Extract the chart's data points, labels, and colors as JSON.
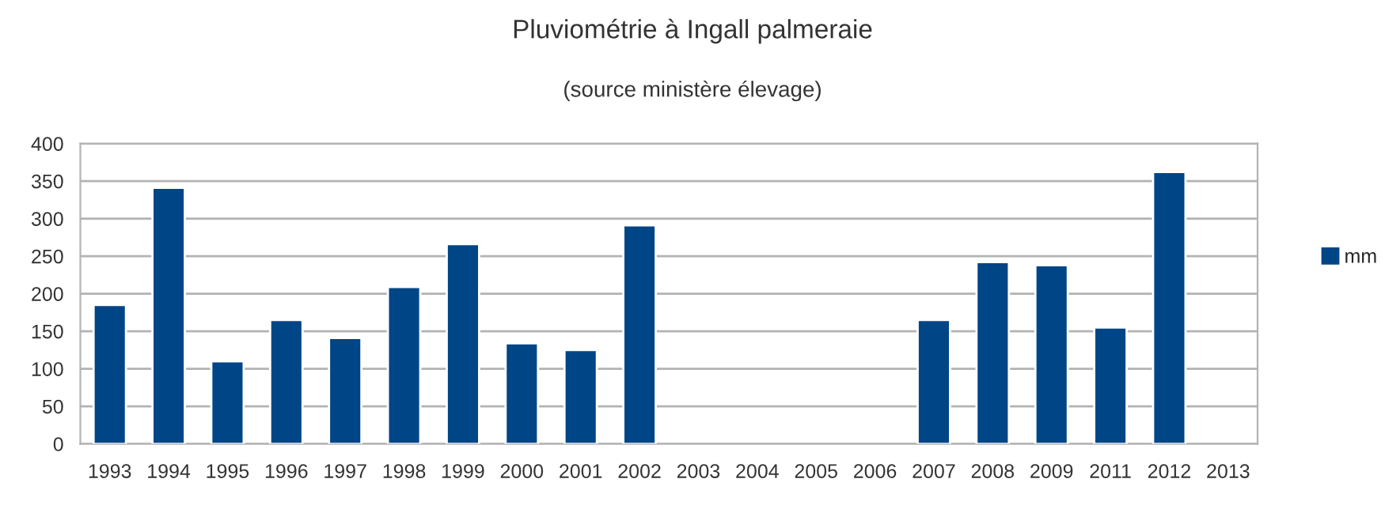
{
  "chart_data": {
    "type": "bar",
    "title": "Pluviométrie à Ingall palmeraie",
    "subtitle": "(source ministère élevage)",
    "categories": [
      "1993",
      "1994",
      "1995",
      "1996",
      "1997",
      "1998",
      "1999",
      "2000",
      "2001",
      "2002",
      "2003",
      "2004",
      "2005",
      "2006",
      "2007",
      "2008",
      "2009",
      "2011",
      "2012",
      "2013"
    ],
    "series": [
      {
        "name": "mm",
        "color": "#004586",
        "values": [
          185,
          341,
          110,
          165,
          141,
          209,
          266,
          134,
          125,
          291,
          null,
          null,
          null,
          null,
          165,
          242,
          238,
          155,
          362,
          null
        ]
      }
    ],
    "ylim": [
      0,
      400
    ],
    "yticks": [
      0,
      50,
      100,
      150,
      200,
      250,
      300,
      350,
      400
    ],
    "grid": "y",
    "legend": "right"
  }
}
